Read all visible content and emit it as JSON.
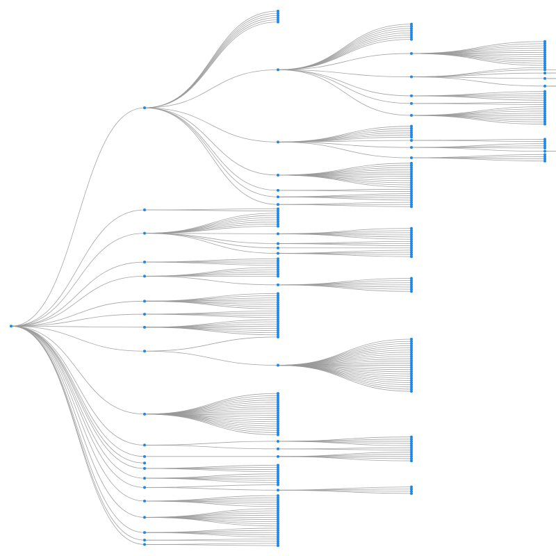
{
  "style": {
    "background": "#ffffff",
    "link_color": "#999999",
    "node_color": "#1e88e5"
  },
  "tree": {
    "children": [
      {
        "n": 6,
        "children": [
          {
            "n": 8,
            "children": [
              {
                "n": 12
              },
              {
                "n": 1,
                "children": [
                  {
                    "n": 1
                  },
                  {
                    "n": 2
                  },
                  {
                    "n": 3
                  },
                  {
                    "n": 4
                  }
                ]
              },
              {
                "n": 5
              },
              {
                "n": 2
              },
              {
                "n": 9
              }
            ]
          },
          {
            "n": 6,
            "children": [
              {
                "n": 2
              },
              {
                "n": 3,
                "children": [
                  {
                    "n": 2
                  }
                ]
              },
              {
                "n": 4
              }
            ]
          },
          {
            "n": 12
          },
          {
            "n": 2
          },
          {
            "n": 4
          },
          {
            "n": 3
          }
        ]
      },
      {
        "n": 2
      },
      {
        "n": 7,
        "children": [
          {
            "n": 6
          },
          {
            "n": 3
          },
          {
            "n": 1
          },
          {
            "n": 4
          }
        ]
      },
      {
        "n": 4
      },
      {
        "n": 5,
        "children": [
          {
            "n": 7
          }
        ]
      },
      {
        "n": 8
      },
      {
        "n": 4
      },
      {
        "n": 8
      },
      {
        "n": 1,
        "children": [
          {
            "n": 25
          }
        ]
      },
      {
        "n": 20
      },
      {
        "n": 0,
        "children": [
          {
            "n": 5
          },
          {
            "n": 2
          }
        ]
      },
      {
        "n": 0,
        "children": [
          {
            "n": 5
          }
        ]
      },
      {
        "n": 0
      },
      {
        "n": 4
      },
      {
        "n": 5
      },
      {
        "n": 1,
        "children": [
          {
            "n": 4
          }
        ]
      },
      {
        "n": 6
      },
      {
        "n": 9
      },
      {
        "n": 5
      },
      {
        "n": 2
      },
      {
        "n": 2
      }
    ]
  }
}
